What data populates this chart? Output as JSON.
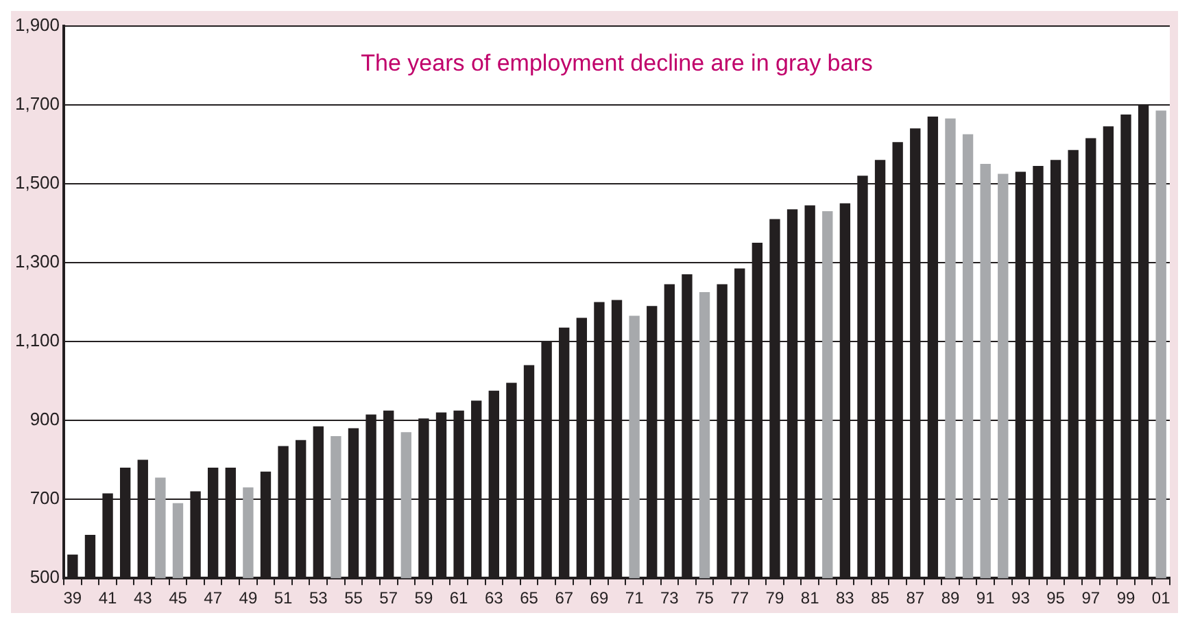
{
  "chart_data": {
    "type": "bar",
    "annotations": [
      "The years of employment decline are in gray bars"
    ],
    "categories": [
      "39",
      null,
      "41",
      null,
      "43",
      null,
      "45",
      null,
      "47",
      null,
      "49",
      null,
      "51",
      null,
      "53",
      null,
      "55",
      null,
      "57",
      null,
      "59",
      null,
      "61",
      null,
      "63",
      null,
      "65",
      null,
      "67",
      null,
      "69",
      null,
      "71",
      null,
      "73",
      null,
      "75",
      null,
      "77",
      null,
      "79",
      null,
      "81",
      null,
      "83",
      null,
      "85",
      null,
      "87",
      null,
      "89",
      null,
      "91",
      null,
      "93",
      null,
      "95",
      null,
      "97",
      null,
      "99",
      null,
      "01"
    ],
    "values": [
      560,
      610,
      715,
      780,
      800,
      755,
      690,
      720,
      780,
      780,
      730,
      770,
      835,
      850,
      885,
      860,
      880,
      915,
      925,
      870,
      905,
      920,
      925,
      950,
      975,
      995,
      1040,
      1100,
      1135,
      1160,
      1200,
      1205,
      1165,
      1190,
      1245,
      1270,
      1225,
      1245,
      1285,
      1350,
      1410,
      1435,
      1445,
      1430,
      1450,
      1520,
      1560,
      1605,
      1640,
      1670,
      1665,
      1625,
      1550,
      1525,
      1530,
      1545,
      1560,
      1585,
      1615,
      1645,
      1675,
      1700,
      1685
    ],
    "colors": [
      "#231f20",
      "#231f20",
      "#231f20",
      "#231f20",
      "#231f20",
      "#a7a9ac",
      "#a7a9ac",
      "#231f20",
      "#231f20",
      "#231f20",
      "#a7a9ac",
      "#231f20",
      "#231f20",
      "#231f20",
      "#231f20",
      "#a7a9ac",
      "#231f20",
      "#231f20",
      "#231f20",
      "#a7a9ac",
      "#231f20",
      "#231f20",
      "#231f20",
      "#231f20",
      "#231f20",
      "#231f20",
      "#231f20",
      "#231f20",
      "#231f20",
      "#231f20",
      "#231f20",
      "#231f20",
      "#a7a9ac",
      "#231f20",
      "#231f20",
      "#231f20",
      "#a7a9ac",
      "#231f20",
      "#231f20",
      "#231f20",
      "#231f20",
      "#231f20",
      "#231f20",
      "#a7a9ac",
      "#231f20",
      "#231f20",
      "#231f20",
      "#231f20",
      "#231f20",
      "#231f20",
      "#a7a9ac",
      "#a7a9ac",
      "#a7a9ac",
      "#a7a9ac",
      "#231f20",
      "#231f20",
      "#231f20",
      "#231f20",
      "#231f20",
      "#231f20",
      "#231f20",
      "#231f20",
      "#a7a9ac"
    ],
    "ylim": [
      500,
      1900
    ],
    "yticks": [
      {
        "value": 500,
        "label": "500"
      },
      {
        "value": 700,
        "label": "700"
      },
      {
        "value": 900,
        "label": "900"
      },
      {
        "value": 1100,
        "label": "1,100"
      },
      {
        "value": 1300,
        "label": "1,300"
      },
      {
        "value": 1500,
        "label": "1,500"
      },
      {
        "value": 1700,
        "label": "1,700"
      },
      {
        "value": 1900,
        "label": "1,900"
      }
    ],
    "grid": "y",
    "legend": false
  }
}
